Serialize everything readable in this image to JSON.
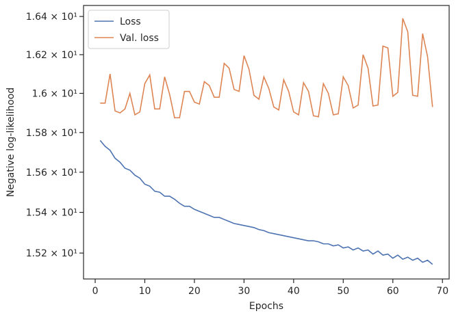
{
  "chart_data": {
    "type": "line",
    "xlabel": "Epochs",
    "ylabel": "Negative log-likelihood",
    "x": [
      1,
      2,
      3,
      4,
      5,
      6,
      7,
      8,
      9,
      10,
      11,
      12,
      13,
      14,
      15,
      16,
      17,
      18,
      19,
      20,
      21,
      22,
      23,
      24,
      25,
      26,
      27,
      28,
      29,
      30,
      31,
      32,
      33,
      34,
      35,
      36,
      37,
      38,
      39,
      40,
      41,
      42,
      43,
      44,
      45,
      46,
      47,
      48,
      49,
      50,
      51,
      52,
      53,
      54,
      55,
      56,
      57,
      58,
      59,
      60,
      61,
      62,
      63,
      64,
      65,
      66,
      67,
      68
    ],
    "series": [
      {
        "name": "Loss",
        "color": "#4c72b0",
        "values": [
          15.76,
          15.73,
          15.71,
          15.67,
          15.65,
          15.62,
          15.61,
          15.585,
          15.57,
          15.54,
          15.53,
          15.505,
          15.5,
          15.48,
          15.48,
          15.465,
          15.445,
          15.43,
          15.43,
          15.415,
          15.405,
          15.395,
          15.385,
          15.375,
          15.375,
          15.365,
          15.355,
          15.345,
          15.34,
          15.335,
          15.33,
          15.325,
          15.315,
          15.31,
          15.3,
          15.295,
          15.29,
          15.285,
          15.28,
          15.275,
          15.27,
          15.265,
          15.26,
          15.26,
          15.255,
          15.245,
          15.245,
          15.235,
          15.24,
          15.225,
          15.23,
          15.215,
          15.225,
          15.21,
          15.215,
          15.195,
          15.21,
          15.19,
          15.195,
          15.175,
          15.19,
          15.17,
          15.18,
          15.165,
          15.175,
          15.155,
          15.165,
          15.145
        ]
      },
      {
        "name": "Val. loss",
        "color": "#dd8452",
        "values": [
          15.95,
          15.95,
          16.1,
          15.91,
          15.9,
          15.92,
          16.0,
          15.89,
          15.905,
          16.05,
          16.095,
          15.92,
          15.92,
          16.085,
          15.995,
          15.875,
          15.875,
          16.01,
          16.01,
          15.955,
          15.945,
          16.06,
          16.04,
          15.98,
          15.98,
          16.155,
          16.13,
          16.02,
          16.01,
          16.195,
          16.125,
          15.99,
          15.97,
          16.085,
          16.025,
          15.93,
          15.915,
          16.07,
          16.01,
          15.905,
          15.89,
          16.055,
          16.01,
          15.885,
          15.88,
          16.05,
          16.0,
          15.89,
          15.895,
          16.085,
          16.04,
          15.925,
          15.94,
          16.2,
          16.13,
          15.935,
          15.94,
          16.245,
          16.235,
          15.985,
          16.005,
          16.39,
          16.32,
          15.99,
          15.985,
          16.31,
          16.19,
          15.93
        ]
      }
    ],
    "xlim": [
      -2.35,
      71.35
    ],
    "xticks": [
      0,
      10,
      20,
      30,
      40,
      50,
      60,
      70
    ],
    "ylim": [
      15.074,
      16.458
    ],
    "log_y": true,
    "yticks": [
      {
        "value": 15.2,
        "label": "1.52 × 10¹"
      },
      {
        "value": 15.4,
        "label": "1.54 × 10¹"
      },
      {
        "value": 15.6,
        "label": "1.56 × 10¹"
      },
      {
        "value": 15.8,
        "label": "1.58 × 10¹"
      },
      {
        "value": 16,
        "label": "1.6 × 10¹"
      },
      {
        "value": 16.2,
        "label": "1.62 × 10¹"
      },
      {
        "value": 16.4,
        "label": "1.64 × 10¹"
      }
    ],
    "legend": "upper left"
  }
}
